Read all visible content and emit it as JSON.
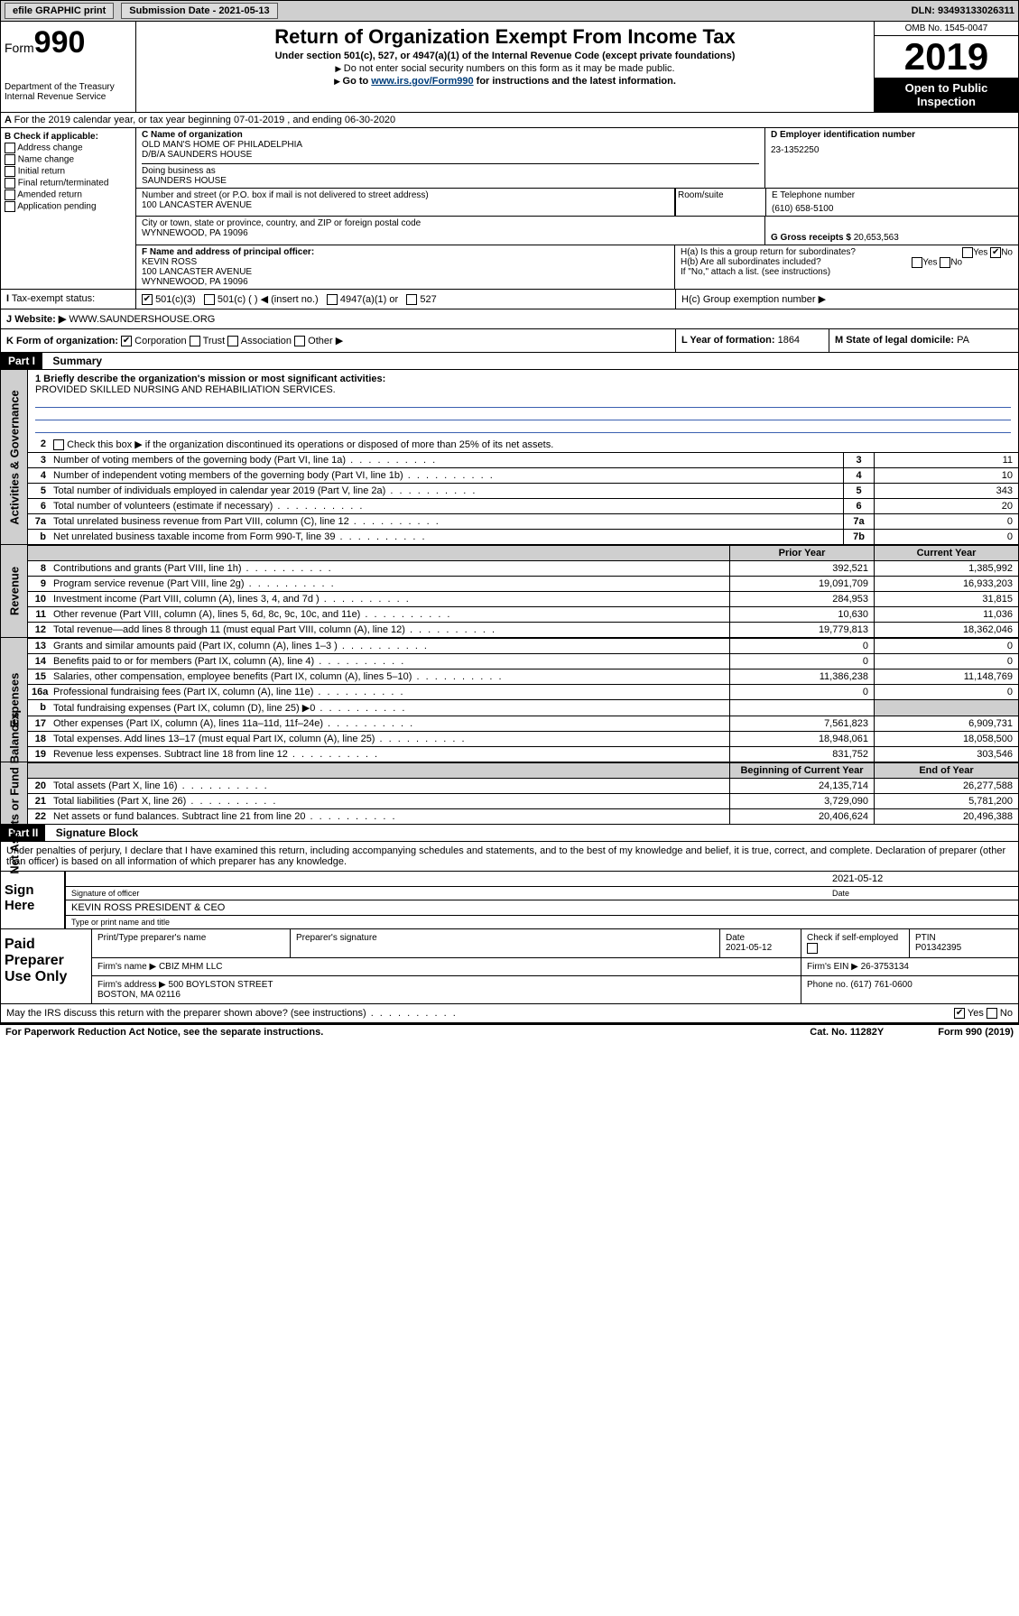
{
  "topbar": {
    "efile": "efile GRAPHIC print",
    "sub_label": "Submission Date - 2021-05-13",
    "dln": "DLN: 93493133026311"
  },
  "header": {
    "form_prefix": "Form",
    "form_num": "990",
    "dept": "Department of the Treasury\nInternal Revenue Service",
    "title": "Return of Organization Exempt From Income Tax",
    "sub1": "Under section 501(c), 527, or 4947(a)(1) of the Internal Revenue Code (except private foundations)",
    "sub2": "Do not enter social security numbers on this form as it may be made public.",
    "sub3_pre": "Go to ",
    "sub3_link": "www.irs.gov/Form990",
    "sub3_post": " for instructions and the latest information.",
    "omb": "OMB No. 1545-0047",
    "year": "2019",
    "pub": "Open to Public Inspection"
  },
  "lineA": "For the 2019 calendar year, or tax year beginning 07-01-2019    , and ending 06-30-2020",
  "boxB": {
    "label": "B Check if applicable:",
    "items": [
      "Address change",
      "Name change",
      "Initial return",
      "Final return/terminated",
      "Amended return",
      "Application pending"
    ]
  },
  "boxC": {
    "label": "C Name of organization",
    "name": "OLD MAN'S HOME OF PHILADELPHIA\nD/B/A SAUNDERS HOUSE",
    "dba_label": "Doing business as",
    "dba": "SAUNDERS HOUSE",
    "street_label": "Number and street (or P.O. box if mail is not delivered to street address)",
    "street": "100 LANCASTER AVENUE",
    "room_label": "Room/suite",
    "city_label": "City or town, state or province, country, and ZIP or foreign postal code",
    "city": "WYNNEWOOD, PA  19096"
  },
  "boxD": {
    "label": "D Employer identification number",
    "val": "23-1352250"
  },
  "boxE": {
    "label": "E Telephone number",
    "val": "(610) 658-5100"
  },
  "boxG": {
    "label": "G Gross receipts $",
    "val": "20,653,563"
  },
  "boxF": {
    "label": "F  Name and address of principal officer:",
    "name": "KEVIN ROSS",
    "addr": "100 LANCASTER AVENUE\nWYNNEWOOD, PA  19096"
  },
  "boxH": {
    "ha": "H(a)  Is this a group return for subordinates?",
    "hb": "H(b)  Are all subordinates included?",
    "hb_note": "If \"No,\" attach a list. (see instructions)",
    "hc": "H(c)  Group exemption number ▶"
  },
  "boxI": {
    "label": "Tax-exempt status:",
    "opts": [
      "501(c)(3)",
      "501(c) (   ) ◀ (insert no.)",
      "4947(a)(1) or",
      "527"
    ]
  },
  "boxJ": {
    "label": "Website: ▶",
    "val": "WWW.SAUNDERSHOUSE.ORG"
  },
  "boxK": {
    "label": "K Form of organization:",
    "opts": [
      "Corporation",
      "Trust",
      "Association",
      "Other ▶"
    ]
  },
  "boxL": {
    "label": "L Year of formation:",
    "val": "1864"
  },
  "boxM": {
    "label": "M State of legal domicile:",
    "val": "PA"
  },
  "part1": {
    "num": "Part I",
    "title": "Summary"
  },
  "summary": {
    "q1_label": "1  Briefly describe the organization's mission or most significant activities:",
    "q1_val": "PROVIDED SKILLED NURSING AND REHABILIATION SERVICES.",
    "q2": "Check this box ▶       if the organization discontinued its operations or disposed of more than 25% of its net assets.",
    "rows": [
      {
        "n": "3",
        "t": "Number of voting members of the governing body (Part VI, line 1a)",
        "box": "3",
        "v": "11"
      },
      {
        "n": "4",
        "t": "Number of independent voting members of the governing body (Part VI, line 1b)",
        "box": "4",
        "v": "10"
      },
      {
        "n": "5",
        "t": "Total number of individuals employed in calendar year 2019 (Part V, line 2a)",
        "box": "5",
        "v": "343"
      },
      {
        "n": "6",
        "t": "Total number of volunteers (estimate if necessary)",
        "box": "6",
        "v": "20"
      },
      {
        "n": "7a",
        "t": "Total unrelated business revenue from Part VIII, column (C), line 12",
        "box": "7a",
        "v": "0"
      },
      {
        "n": "b",
        "t": "Net unrelated business taxable income from Form 990-T, line 39",
        "box": "7b",
        "v": "0"
      }
    ]
  },
  "rev_hdr": {
    "prior": "Prior Year",
    "curr": "Current Year"
  },
  "revenue": [
    {
      "n": "8",
      "t": "Contributions and grants (Part VIII, line 1h)",
      "p": "392,521",
      "c": "1,385,992"
    },
    {
      "n": "9",
      "t": "Program service revenue (Part VIII, line 2g)",
      "p": "19,091,709",
      "c": "16,933,203"
    },
    {
      "n": "10",
      "t": "Investment income (Part VIII, column (A), lines 3, 4, and 7d )",
      "p": "284,953",
      "c": "31,815"
    },
    {
      "n": "11",
      "t": "Other revenue (Part VIII, column (A), lines 5, 6d, 8c, 9c, 10c, and 11e)",
      "p": "10,630",
      "c": "11,036"
    },
    {
      "n": "12",
      "t": "Total revenue—add lines 8 through 11 (must equal Part VIII, column (A), line 12)",
      "p": "19,779,813",
      "c": "18,362,046"
    }
  ],
  "expenses": [
    {
      "n": "13",
      "t": "Grants and similar amounts paid (Part IX, column (A), lines 1–3 )",
      "p": "0",
      "c": "0"
    },
    {
      "n": "14",
      "t": "Benefits paid to or for members (Part IX, column (A), line 4)",
      "p": "0",
      "c": "0"
    },
    {
      "n": "15",
      "t": "Salaries, other compensation, employee benefits (Part IX, column (A), lines 5–10)",
      "p": "11,386,238",
      "c": "11,148,769"
    },
    {
      "n": "16a",
      "t": "Professional fundraising fees (Part IX, column (A), line 11e)",
      "p": "0",
      "c": "0"
    },
    {
      "n": "b",
      "t": "Total fundraising expenses (Part IX, column (D), line 25) ▶0",
      "p": "",
      "c": "",
      "shade": true
    },
    {
      "n": "17",
      "t": "Other expenses (Part IX, column (A), lines 11a–11d, 11f–24e)",
      "p": "7,561,823",
      "c": "6,909,731"
    },
    {
      "n": "18",
      "t": "Total expenses. Add lines 13–17 (must equal Part IX, column (A), line 25)",
      "p": "18,948,061",
      "c": "18,058,500"
    },
    {
      "n": "19",
      "t": "Revenue less expenses. Subtract line 18 from line 12",
      "p": "831,752",
      "c": "303,546"
    }
  ],
  "na_hdr": {
    "prior": "Beginning of Current Year",
    "curr": "End of Year"
  },
  "netassets": [
    {
      "n": "20",
      "t": "Total assets (Part X, line 16)",
      "p": "24,135,714",
      "c": "26,277,588"
    },
    {
      "n": "21",
      "t": "Total liabilities (Part X, line 26)",
      "p": "3,729,090",
      "c": "5,781,200"
    },
    {
      "n": "22",
      "t": "Net assets or fund balances. Subtract line 21 from line 20",
      "p": "20,406,624",
      "c": "20,496,388"
    }
  ],
  "side_labels": {
    "gov": "Activities & Governance",
    "rev": "Revenue",
    "exp": "Expenses",
    "na": "Net Assets or Fund Balances"
  },
  "part2": {
    "num": "Part II",
    "title": "Signature Block"
  },
  "sig": {
    "perjury": "Under penalties of perjury, I declare that I have examined this return, including accompanying schedules and statements, and to the best of my knowledge and belief, it is true, correct, and complete. Declaration of preparer (other than officer) is based on all information of which preparer has any knowledge.",
    "here": "Sign Here",
    "date": "2021-05-12",
    "sig_label": "Signature of officer",
    "date_label": "Date",
    "name": "KEVIN ROSS PRESIDENT & CEO",
    "name_label": "Type or print name and title"
  },
  "paid": {
    "label": "Paid Preparer Use Only",
    "h1": "Print/Type preparer's name",
    "h2": "Preparer's signature",
    "h3": "Date",
    "h3v": "2021-05-12",
    "h4": "Check        if self-employed",
    "h5": "PTIN",
    "h5v": "P01342395",
    "firm_label": "Firm's name    ▶",
    "firm": "CBIZ MHM LLC",
    "ein_label": "Firm's EIN ▶",
    "ein": "26-3753134",
    "addr_label": "Firm's address ▶",
    "addr": "500 BOYLSTON STREET\nBOSTON, MA  02116",
    "phone_label": "Phone no.",
    "phone": "(617) 761-0600"
  },
  "discuss": "May the IRS discuss this return with the preparer shown above? (see instructions)",
  "footer": {
    "l": "For Paperwork Reduction Act Notice, see the separate instructions.",
    "m": "Cat. No. 11282Y",
    "r": "Form 990 (2019)"
  }
}
